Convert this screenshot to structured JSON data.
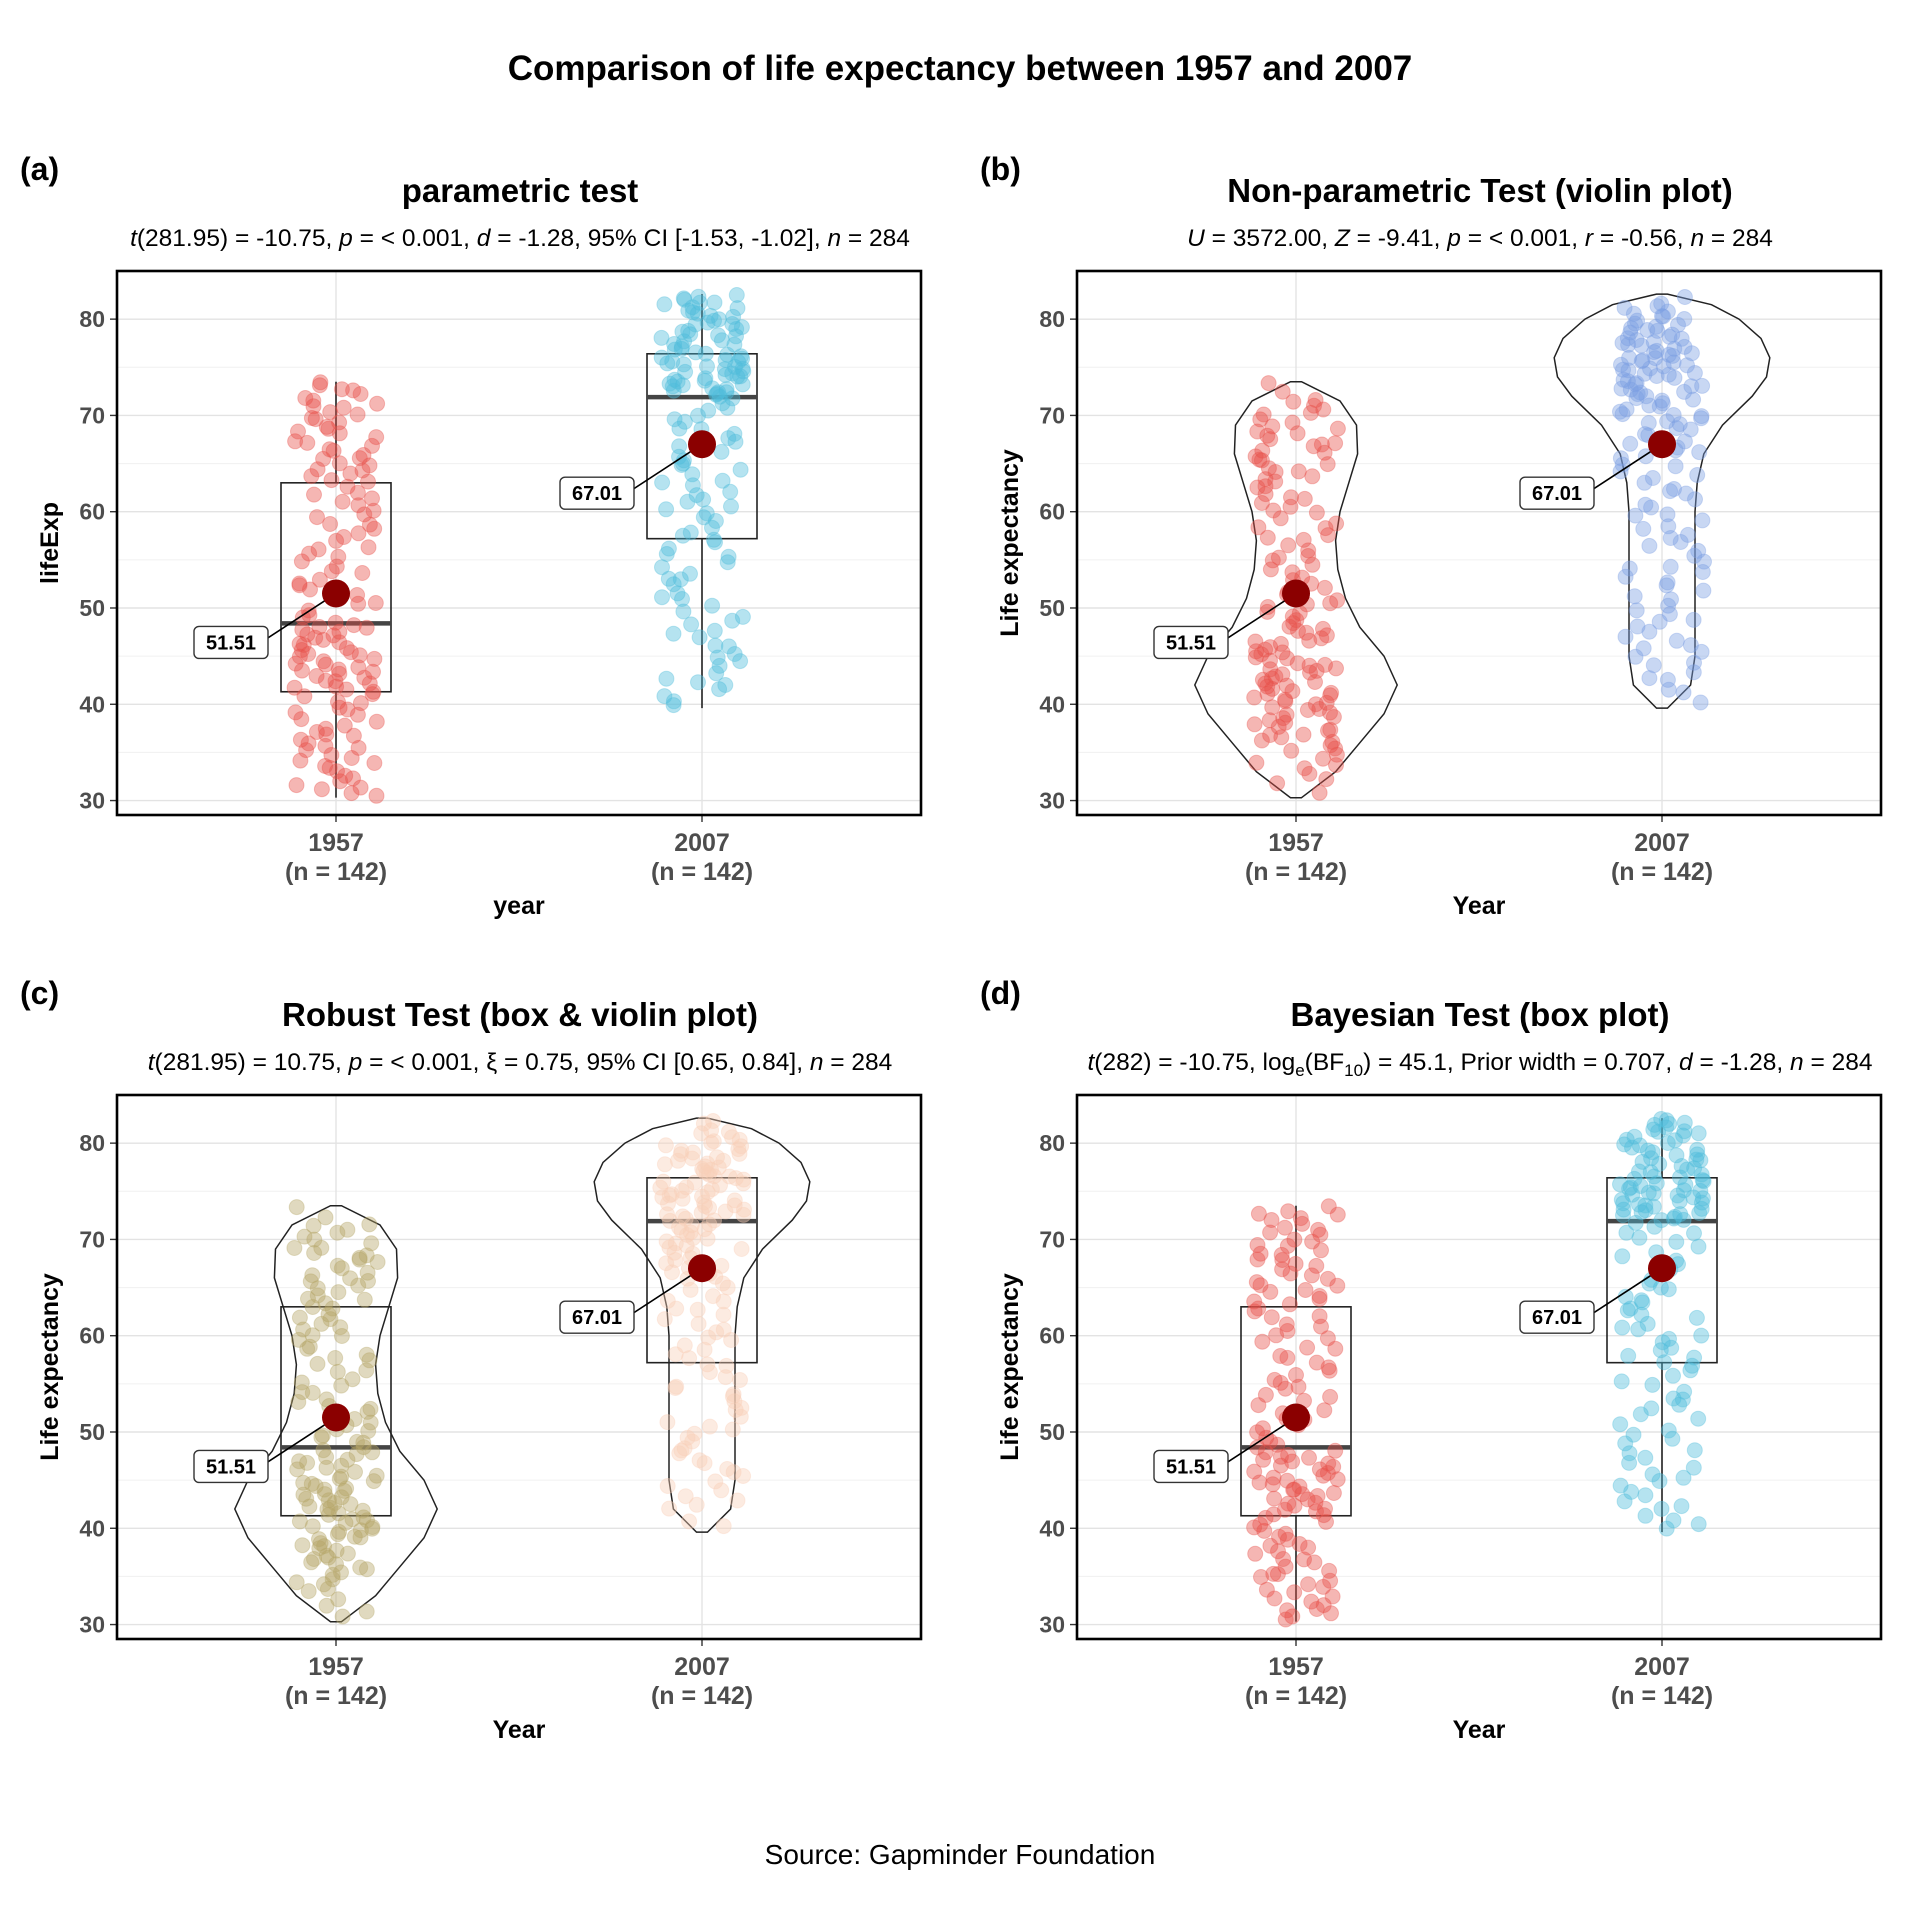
{
  "title": "Comparison of life expectancy between 1957 and 2007",
  "caption": "Source: Gapminder Foundation",
  "colors": {
    "mean_point": "#8b0000",
    "red": "#e8504a",
    "cyan": "#4fbcdb",
    "blue": "#7b9fe2",
    "olive": "#b5a566",
    "peach": "#f9cfb8"
  },
  "panels": [
    {
      "tag": "(a)",
      "title": "parametric test",
      "subtitle": [
        {
          "t": "t",
          "i": true
        },
        {
          "t": "(281.95) = -10.75, "
        },
        {
          "t": "p",
          "i": true
        },
        {
          "t": " = < 0.001, "
        },
        {
          "t": "d",
          "i": true
        },
        {
          "t": " = -1.28, 95% CI [-1.53, -1.02], "
        },
        {
          "t": "n",
          "i": true
        },
        {
          "t": " = 284"
        }
      ],
      "xlabel": "year",
      "ylabel": "lifeExp"
    },
    {
      "tag": "(b)",
      "title": "Non-parametric Test (violin plot)",
      "subtitle": [
        {
          "t": "U",
          "i": true
        },
        {
          "t": " = 3572.00, "
        },
        {
          "t": "Z",
          "i": true
        },
        {
          "t": " = -9.41,  "
        },
        {
          "t": "p",
          "i": true
        },
        {
          "t": " = < 0.001, "
        },
        {
          "t": "r",
          "i": true
        },
        {
          "t": " = -0.56, "
        },
        {
          "t": "n",
          "i": true
        },
        {
          "t": " = 284"
        }
      ],
      "xlabel": "Year",
      "ylabel": "Life expectancy"
    },
    {
      "tag": "(c)",
      "title": "Robust Test (box & violin plot)",
      "subtitle": [
        {
          "t": "t",
          "i": true
        },
        {
          "t": "(281.95) = 10.75, "
        },
        {
          "t": "p",
          "i": true
        },
        {
          "t": " = < 0.001, ξ = 0.75, 95% CI [0.65, 0.84], "
        },
        {
          "t": "n",
          "i": true
        },
        {
          "t": " = 284"
        }
      ],
      "xlabel": "Year",
      "ylabel": "Life expectancy"
    },
    {
      "tag": "(d)",
      "title": "Bayesian Test (box plot)",
      "subtitle": [
        {
          "t": "t",
          "i": true
        },
        {
          "t": "(282) = -10.75, log"
        },
        {
          "t": "e",
          "sub": true
        },
        {
          "t": "(BF"
        },
        {
          "t": "10",
          "sub": true
        },
        {
          "t": ") = 45.1, Prior width = 0.707, "
        },
        {
          "t": "d",
          "i": true
        },
        {
          "t": " = -1.28, "
        },
        {
          "t": "n",
          "i": true
        },
        {
          "t": " = 284"
        }
      ],
      "xlabel": "Year",
      "ylabel": "Life expectancy"
    }
  ],
  "chart_data": [
    {
      "type": "box",
      "title": "parametric test",
      "xlabel": "year",
      "ylabel": "lifeExp",
      "ylim": [
        28.5,
        85
      ],
      "yticks": [
        30,
        40,
        50,
        60,
        70,
        80
      ],
      "grid": true,
      "layers": [
        "box",
        "points",
        "mean"
      ],
      "categories": [
        "1957",
        "2007"
      ],
      "category_labels": [
        "(n = 142)",
        "(n = 142)"
      ],
      "groups": [
        {
          "category": "1957",
          "n": 142,
          "color": "red",
          "box": {
            "q1": 41.3,
            "median": 48.4,
            "q3": 63.0,
            "whisker_low": 30.3,
            "whisker_high": 73.5
          },
          "violin": null,
          "min": 30.3,
          "max": 73.5,
          "mean": 51.51,
          "mean_label": "51.51"
        },
        {
          "category": "2007",
          "n": 142,
          "color": "cyan",
          "box": {
            "q1": 57.2,
            "median": 71.9,
            "q3": 76.4,
            "whisker_low": 39.6,
            "whisker_high": 82.6
          },
          "violin": null,
          "min": 39.6,
          "max": 82.6,
          "mean": 67.01,
          "mean_label": "67.01"
        }
      ]
    },
    {
      "type": "violin",
      "title": "Non-parametric Test (violin plot)",
      "xlabel": "Year",
      "ylabel": "Life expectancy",
      "ylim": [
        28.5,
        85
      ],
      "yticks": [
        30,
        40,
        50,
        60,
        70,
        80
      ],
      "grid": true,
      "layers": [
        "violin",
        "points",
        "mean"
      ],
      "categories": [
        "1957",
        "2007"
      ],
      "category_labels": [
        "(n = 142)",
        "(n = 142)"
      ],
      "groups": [
        {
          "category": "1957",
          "n": 142,
          "color": "red",
          "box": null,
          "violin": {
            "y": [
              30.3,
              33,
              36,
              39,
              42,
              45,
              48,
              51,
              54,
              57,
              60,
              63,
              66,
              69,
              71.5,
              73.5
            ],
            "w": [
              0.05,
              0.36,
              0.58,
              0.8,
              0.92,
              0.8,
              0.58,
              0.45,
              0.38,
              0.36,
              0.4,
              0.48,
              0.56,
              0.55,
              0.4,
              0.05
            ]
          },
          "min": 30.3,
          "max": 73.5,
          "mean": 51.51,
          "mean_label": "51.51"
        },
        {
          "category": "2007",
          "n": 142,
          "color": "blue",
          "box": null,
          "violin": {
            "y": [
              39.6,
              42,
              45,
              48,
              51,
              54,
              57,
              60,
              63,
              66,
              69,
              72,
              74,
              76,
              78,
              80,
              81.5,
              82.6
            ],
            "w": [
              0.05,
              0.26,
              0.3,
              0.3,
              0.3,
              0.3,
              0.3,
              0.3,
              0.32,
              0.38,
              0.55,
              0.82,
              0.95,
              0.98,
              0.9,
              0.7,
              0.45,
              0.05
            ]
          },
          "min": 39.6,
          "max": 82.6,
          "mean": 67.01,
          "mean_label": "67.01"
        }
      ]
    },
    {
      "type": "box",
      "title": "Robust Test (box & violin plot)",
      "xlabel": "Year",
      "ylabel": "Life expectancy",
      "ylim": [
        28.5,
        85
      ],
      "yticks": [
        30,
        40,
        50,
        60,
        70,
        80
      ],
      "grid": true,
      "layers": [
        "box",
        "violin",
        "points",
        "mean"
      ],
      "categories": [
        "1957",
        "2007"
      ],
      "category_labels": [
        "(n = 142)",
        "(n = 142)"
      ],
      "groups": [
        {
          "category": "1957",
          "n": 142,
          "color": "olive",
          "box": {
            "q1": 41.3,
            "median": 48.4,
            "q3": 63.0,
            "whisker_low": null,
            "whisker_high": null
          },
          "violin": {
            "y": [
              30.3,
              33,
              36,
              39,
              42,
              45,
              48,
              51,
              54,
              57,
              60,
              63,
              66,
              69,
              71.5,
              73.5
            ],
            "w": [
              0.05,
              0.36,
              0.58,
              0.8,
              0.92,
              0.8,
              0.58,
              0.45,
              0.38,
              0.36,
              0.4,
              0.48,
              0.56,
              0.55,
              0.4,
              0.05
            ]
          },
          "min": 30.3,
          "max": 73.5,
          "mean": 51.51,
          "mean_label": "51.51"
        },
        {
          "category": "2007",
          "n": 142,
          "color": "peach",
          "box": {
            "q1": 57.2,
            "median": 71.9,
            "q3": 76.4,
            "whisker_low": null,
            "whisker_high": null
          },
          "violin": {
            "y": [
              39.6,
              42,
              45,
              48,
              51,
              54,
              57,
              60,
              63,
              66,
              69,
              72,
              74,
              76,
              78,
              80,
              81.5,
              82.6
            ],
            "w": [
              0.05,
              0.26,
              0.3,
              0.3,
              0.3,
              0.3,
              0.3,
              0.3,
              0.32,
              0.38,
              0.55,
              0.82,
              0.95,
              0.98,
              0.9,
              0.7,
              0.45,
              0.05
            ]
          },
          "min": 39.6,
          "max": 82.6,
          "mean": 67.01,
          "mean_label": "67.01"
        }
      ]
    },
    {
      "type": "box",
      "title": "Bayesian Test (box plot)",
      "xlabel": "Year",
      "ylabel": "Life expectancy",
      "ylim": [
        28.5,
        85
      ],
      "yticks": [
        30,
        40,
        50,
        60,
        70,
        80
      ],
      "grid": true,
      "layers": [
        "box",
        "points",
        "mean"
      ],
      "categories": [
        "1957",
        "2007"
      ],
      "category_labels": [
        "(n = 142)",
        "(n = 142)"
      ],
      "groups": [
        {
          "category": "1957",
          "n": 142,
          "color": "red",
          "box": {
            "q1": 41.3,
            "median": 48.4,
            "q3": 63.0,
            "whisker_low": 30.3,
            "whisker_high": 73.5
          },
          "violin": null,
          "min": 30.3,
          "max": 73.5,
          "mean": 51.51,
          "mean_label": "51.51"
        },
        {
          "category": "2007",
          "n": 142,
          "color": "cyan",
          "box": {
            "q1": 57.2,
            "median": 71.9,
            "q3": 76.4,
            "whisker_low": 39.6,
            "whisker_high": 82.6
          },
          "violin": null,
          "min": 39.6,
          "max": 82.6,
          "mean": 67.01,
          "mean_label": "67.01"
        }
      ]
    }
  ]
}
